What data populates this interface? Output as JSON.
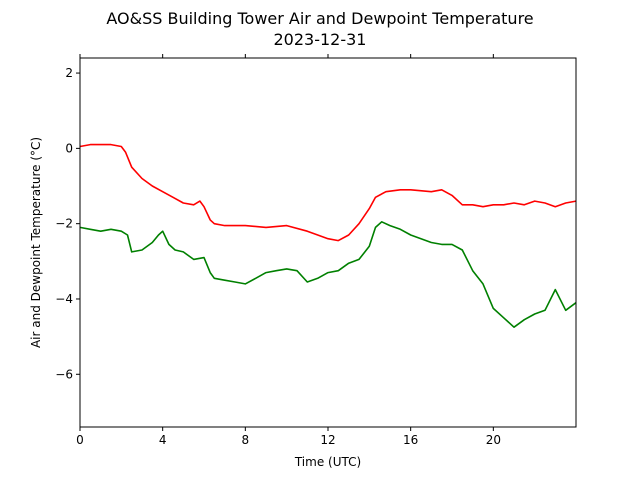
{
  "chart_data": {
    "type": "line",
    "title": "AO&SS Building Tower Air and Dewpoint Temperature",
    "subtitle": "2023-12-31",
    "xlabel": "Time (UTC)",
    "ylabel": "Air and Dewpoint Temperature (°C)",
    "xlim": [
      0,
      24
    ],
    "ylim": [
      -7.4,
      2.4
    ],
    "x_ticks": [
      0,
      4,
      8,
      12,
      16,
      20
    ],
    "y_ticks": [
      -6,
      -4,
      -2,
      0,
      2
    ],
    "grid": false,
    "series": [
      {
        "color": "#ff0000",
        "x": [
          0,
          0.5,
          1,
          1.5,
          2,
          2.2,
          2.5,
          3,
          3.5,
          4,
          4.5,
          5,
          5.5,
          5.8,
          6,
          6.3,
          6.5,
          7,
          8,
          9,
          10,
          11,
          11.5,
          12,
          12.5,
          13,
          13.5,
          14,
          14.3,
          14.8,
          15.5,
          16,
          17,
          17.5,
          18,
          18.5,
          19,
          19.5,
          20,
          20.5,
          21,
          21.5,
          22,
          22.5,
          23,
          23.5,
          24
        ],
        "values": [
          0.05,
          0.1,
          0.1,
          0.1,
          0.05,
          -0.1,
          -0.5,
          -0.8,
          -1.0,
          -1.15,
          -1.3,
          -1.45,
          -1.5,
          -1.4,
          -1.55,
          -1.9,
          -2.0,
          -2.05,
          -2.05,
          -2.1,
          -2.05,
          -2.2,
          -2.3,
          -2.4,
          -2.45,
          -2.3,
          -2.0,
          -1.6,
          -1.3,
          -1.15,
          -1.1,
          -1.1,
          -1.15,
          -1.1,
          -1.25,
          -1.5,
          -1.5,
          -1.55,
          -1.5,
          -1.5,
          -1.45,
          -1.5,
          -1.4,
          -1.45,
          -1.55,
          -1.45,
          -1.4
        ]
      },
      {
        "color": "#008000",
        "x": [
          0,
          0.5,
          1,
          1.5,
          2,
          2.3,
          2.5,
          3,
          3.5,
          3.8,
          4,
          4.3,
          4.6,
          5,
          5.5,
          6,
          6.3,
          6.5,
          7,
          7.5,
          8,
          8.5,
          9,
          9.5,
          10,
          10.5,
          11,
          11.5,
          12,
          12.5,
          13,
          13.5,
          14,
          14.3,
          14.6,
          15,
          15.5,
          16,
          16.5,
          17,
          17.5,
          18,
          18.5,
          19,
          19.5,
          20,
          20.5,
          21,
          21.5,
          22,
          22.5,
          23,
          23.5,
          24
        ],
        "values": [
          -2.1,
          -2.15,
          -2.2,
          -2.15,
          -2.2,
          -2.3,
          -2.75,
          -2.7,
          -2.5,
          -2.3,
          -2.2,
          -2.55,
          -2.7,
          -2.75,
          -2.95,
          -2.9,
          -3.3,
          -3.45,
          -3.5,
          -3.55,
          -3.6,
          -3.45,
          -3.3,
          -3.25,
          -3.2,
          -3.25,
          -3.55,
          -3.45,
          -3.3,
          -3.25,
          -3.05,
          -2.95,
          -2.6,
          -2.1,
          -1.95,
          -2.05,
          -2.15,
          -2.3,
          -2.4,
          -2.5,
          -2.55,
          -2.55,
          -2.7,
          -3.25,
          -3.6,
          -4.25,
          -4.5,
          -4.75,
          -4.55,
          -4.4,
          -4.3,
          -3.75,
          -4.3,
          -4.1
        ]
      }
    ]
  }
}
